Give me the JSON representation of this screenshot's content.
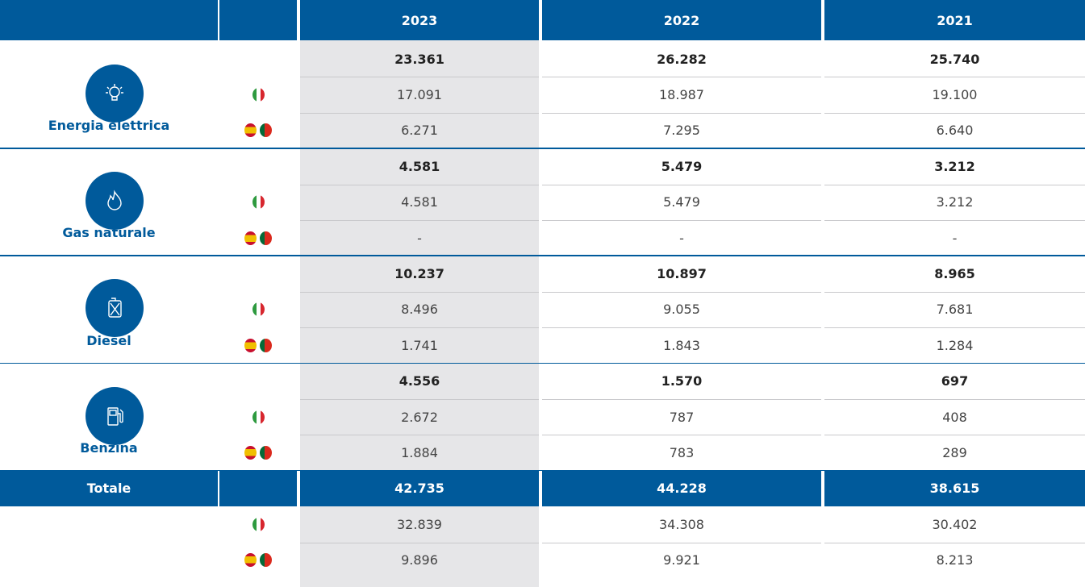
{
  "header": {
    "columns": [
      "2023",
      "2022",
      "2021"
    ]
  },
  "groups": [
    {
      "label": "Energia elettrica",
      "total": [
        "23.361",
        "26.282",
        "25.740"
      ],
      "italy": [
        "17.091",
        "18.987",
        "19.100"
      ],
      "iberia": [
        "6.271",
        "7.295",
        "6.640"
      ]
    },
    {
      "label": "Gas naturale",
      "total": [
        "4.581",
        "5.479",
        "3.212"
      ],
      "italy": [
        "4.581",
        "5.479",
        "3.212"
      ],
      "iberia": [
        "-",
        "-",
        "-"
      ]
    },
    {
      "label": "Diesel",
      "total": [
        "10.237",
        "10.897",
        "8.965"
      ],
      "italy": [
        "8.496",
        "9.055",
        "7.681"
      ],
      "iberia": [
        "1.741",
        "1.843",
        "1.284"
      ]
    },
    {
      "label": "Benzina",
      "total": [
        "4.556",
        "1.570",
        "697"
      ],
      "italy": [
        "2.672",
        "787",
        "408"
      ],
      "iberia": [
        "1.884",
        "783",
        "289"
      ]
    }
  ],
  "totals": {
    "label": "Totale",
    "values": [
      "42.735",
      "44.228",
      "38.615"
    ],
    "italy": [
      "32.839",
      "34.308",
      "30.402"
    ],
    "iberia": [
      "9.896",
      "9.921",
      "8.213"
    ]
  }
}
